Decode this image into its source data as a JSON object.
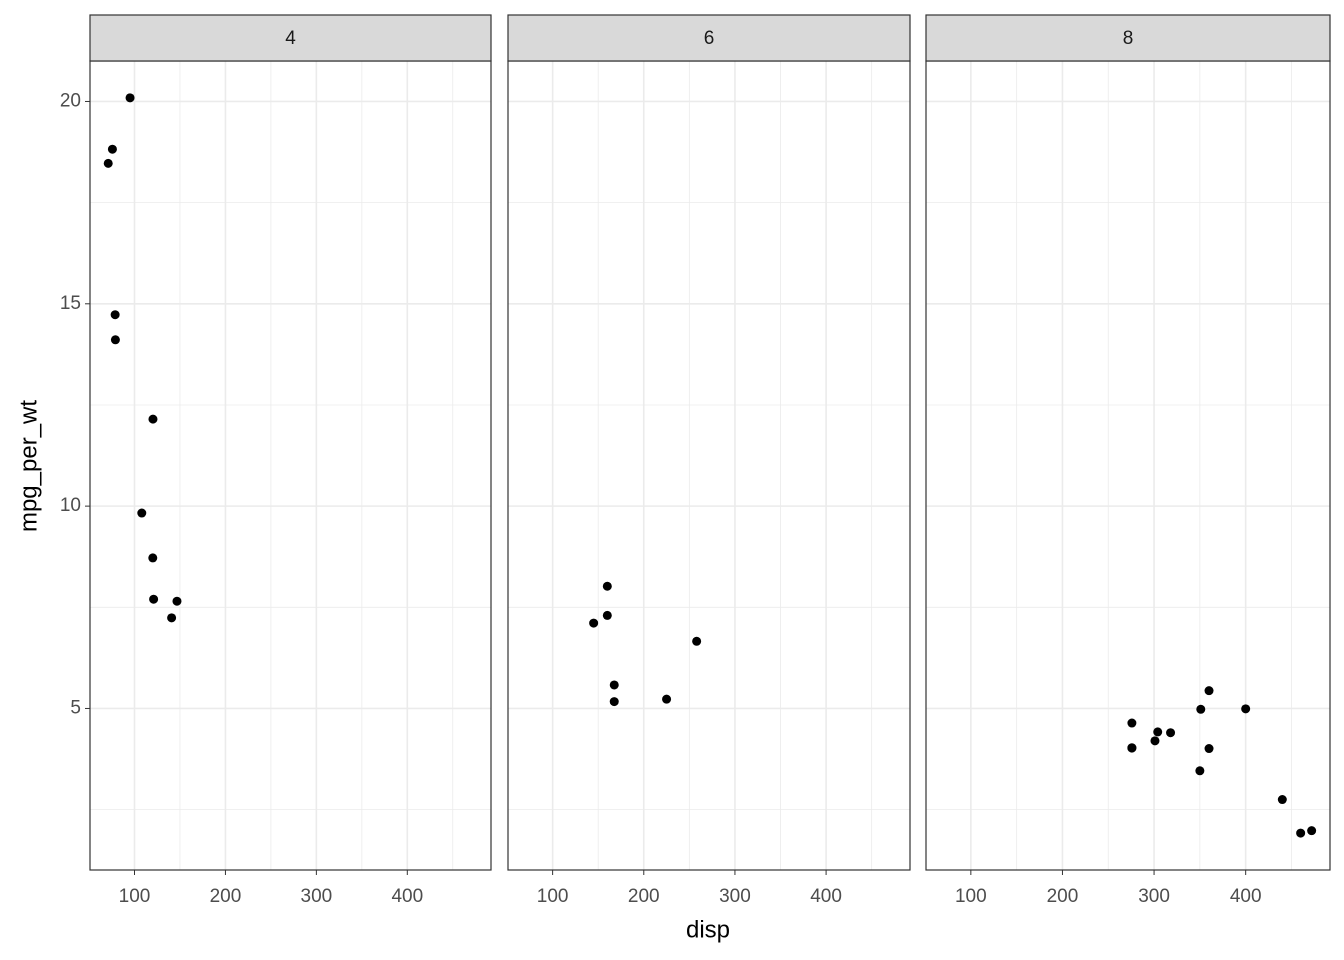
{
  "chart_data": {
    "type": "scatter",
    "x_label": "disp",
    "y_label": "mpg_per_wt",
    "color": "#000000",
    "xlim": [
      51.05,
      492.05
    ],
    "xticks": [
      100,
      200,
      300,
      400
    ],
    "ylim": [
      1.008,
      21.0
    ],
    "yticks": [
      5,
      10,
      15,
      20
    ],
    "grid": true,
    "facets": [
      {
        "title": "4",
        "x": [
          108,
          146.7,
          140.8,
          78.7,
          75.7,
          71.1,
          120.1,
          79,
          120.3,
          95.1,
          121
        ],
        "y": [
          9.83,
          7.65,
          7.24,
          14.73,
          18.82,
          18.47,
          8.72,
          14.11,
          12.15,
          20.09,
          7.7
        ]
      },
      {
        "title": "6",
        "x": [
          160,
          160,
          258,
          225,
          167.6,
          167.6,
          145
        ],
        "y": [
          8.02,
          7.3,
          6.66,
          5.23,
          5.58,
          5.17,
          7.11
        ]
      },
      {
        "title": "8",
        "x": [
          360,
          360,
          275.8,
          275.8,
          275.8,
          472,
          460,
          440,
          318,
          304,
          350,
          400,
          351,
          301
        ],
        "y": [
          5.44,
          4.01,
          4.03,
          4.64,
          4.02,
          1.98,
          1.92,
          2.75,
          4.4,
          4.42,
          3.46,
          4.99,
          4.98,
          4.2
        ]
      }
    ]
  }
}
